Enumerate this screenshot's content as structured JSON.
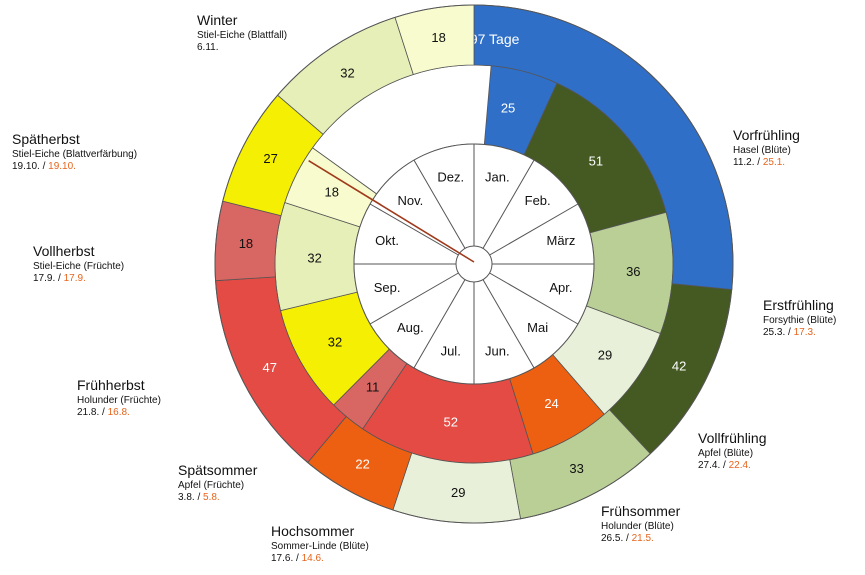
{
  "chart_data": {
    "type": "pie",
    "title": "",
    "center_note": "Mittel: 97 Tage",
    "months": [
      "Jan.",
      "Feb.",
      "März",
      "Apr.",
      "Mai",
      "Jun.",
      "Jul.",
      "Aug.",
      "Sep.",
      "Okt.",
      "Nov.",
      "Dez."
    ],
    "rings": [
      {
        "name": "",
        "values": [
          {
            "season": "Winter",
            "days": 25,
            "color": "#2f6fc8"
          },
          {
            "season": "Vorfrühling",
            "days": 51,
            "color": "#445a22"
          },
          {
            "season": "Erstfrühling",
            "days": 36,
            "color": "#b9cf96"
          },
          {
            "season": "Vollfrühling",
            "days": 29,
            "color": "#e9f0d9"
          },
          {
            "season": "Frühsommer",
            "days": 24,
            "color": "#ee6011"
          },
          {
            "season": "Hochsommer",
            "days": 52,
            "color": "#e34b44"
          },
          {
            "season": "Spätsommer",
            "days": 11,
            "color": "#d86663"
          },
          {
            "season": "Frühherbst",
            "days": 32,
            "color": "#f5f003"
          },
          {
            "season": "Vollherbst",
            "days": 32,
            "color": "#e6efb8"
          },
          {
            "season": "Spätherbst",
            "days": 18,
            "color": "#f8fbcd"
          },
          {
            "season": "Winter",
            "days": 60,
            "color": "#ffffff"
          }
        ]
      },
      {
        "name": "",
        "values": [
          {
            "season": "Winter",
            "days": 97,
            "color": "#2f6fc8"
          },
          {
            "season": "Vorfrühling",
            "days": 42,
            "color": "#445a22"
          },
          {
            "season": "Erstfrühling",
            "days": 33,
            "color": "#b9cf96"
          },
          {
            "season": "Vollfrühling",
            "days": 29,
            "color": "#e9f0d9"
          },
          {
            "season": "Frühsommer",
            "days": 22,
            "color": "#ee6011"
          },
          {
            "season": "Hochsommer",
            "days": 47,
            "color": "#e34b44"
          },
          {
            "season": "Spätsommer",
            "days": 18,
            "color": "#d86663"
          },
          {
            "season": "Frühherbst",
            "days": 27,
            "color": "#f5f003"
          },
          {
            "season": "Vollherbst",
            "days": 32,
            "color": "#e6efb8"
          },
          {
            "season": "Spätherbst",
            "days": 18,
            "color": "#f8fbcd"
          }
        ]
      }
    ]
  },
  "seasons": [
    {
      "name": "Winter",
      "plant": "Stiel-Eiche (Blattfall)",
      "date_old": "6.11.",
      "date_new": ""
    },
    {
      "name": "Vorfrühling",
      "plant": "Hasel (Blüte)",
      "date_old": "11.2. / ",
      "date_new": "25.1."
    },
    {
      "name": "Erstfrühling",
      "plant": "Forsythie (Blüte)",
      "date_old": "25.3. / ",
      "date_new": "17.3."
    },
    {
      "name": "Vollfrühling",
      "plant": "Apfel (Blüte)",
      "date_old": "27.4. / ",
      "date_new": "22.4."
    },
    {
      "name": "Frühsommer",
      "plant": "Holunder (Blüte)",
      "date_old": "26.5. / ",
      "date_new": "21.5."
    },
    {
      "name": "Hochsommer",
      "plant": "Sommer-Linde (Blüte)",
      "date_old": "17.6. / ",
      "date_new": "14.6."
    },
    {
      "name": "Spätsommer",
      "plant": "Apfel (Früchte)",
      "date_old": "3.8. / ",
      "date_new": "5.8."
    },
    {
      "name": "Frühherbst",
      "plant": "Holunder (Früchte)",
      "date_old": "21.8. / ",
      "date_new": "16.8."
    },
    {
      "name": "Vollherbst",
      "plant": "Stiel-Eiche (Früchte)",
      "date_old": "17.9. / ",
      "date_new": "17.9."
    },
    {
      "name": "Spätherbst",
      "plant": "Stiel-Eiche (Blattverfärbung)",
      "date_old": "19.10. / ",
      "date_new": "19.10."
    }
  ]
}
